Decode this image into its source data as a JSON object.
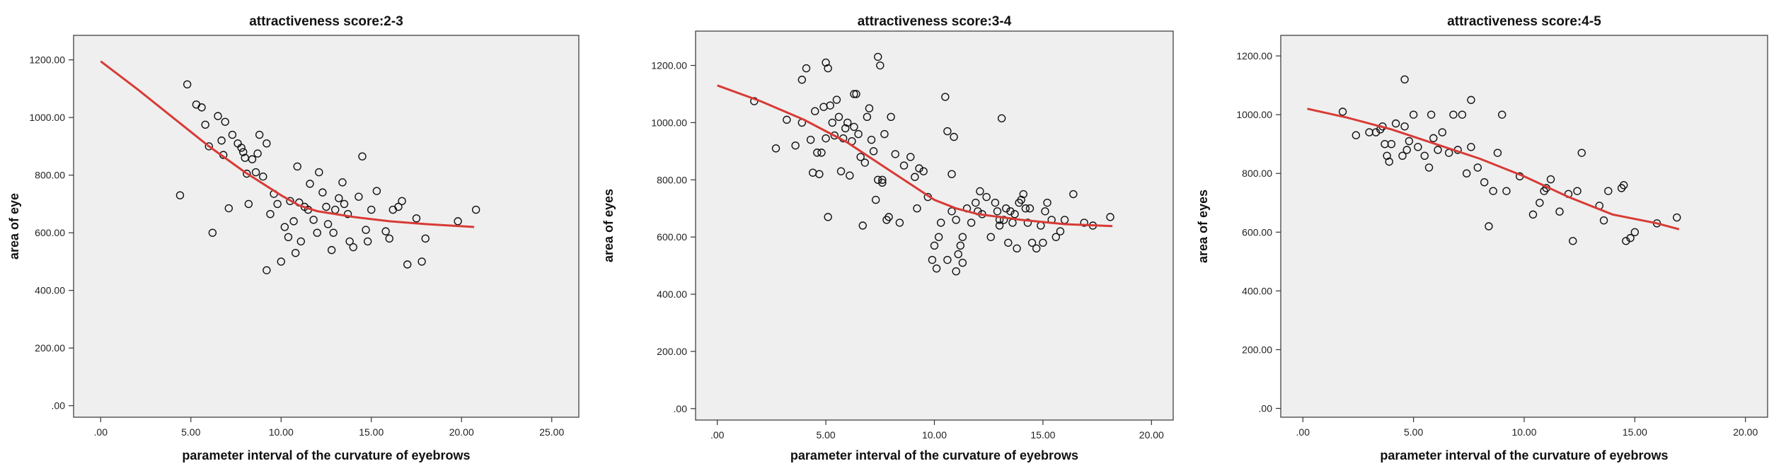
{
  "chart_data": [
    {
      "type": "scatter",
      "title": "attractiveness score:2-3",
      "xlabel": "parameter interval of the curvature of eyebrows",
      "ylabel": "area of eye",
      "xlim": [
        -1.5,
        26.5
      ],
      "ylim": [
        -40,
        1285
      ],
      "x_ticks": [
        ".00",
        "5.00",
        "10.00",
        "15.00",
        "20.00",
        "25.00"
      ],
      "x_tick_values": [
        0,
        5,
        10,
        15,
        20,
        25
      ],
      "y_ticks": [
        ".00",
        "200.00",
        "400.00",
        "600.00",
        "800.00",
        "1000.00",
        "1200.00"
      ],
      "y_tick_values": [
        0,
        200,
        400,
        600,
        800,
        1000,
        1200
      ],
      "fit_line": {
        "x": [
          0,
          2,
          4,
          6,
          8,
          10,
          11,
          12,
          14,
          16,
          18,
          20.7
        ],
        "y": [
          1195,
          1100,
          1000,
          900,
          810,
          730,
          695,
          675,
          655,
          640,
          630,
          620
        ]
      },
      "points": {
        "x": [
          4.4,
          4.8,
          5.3,
          5.6,
          5.8,
          6.0,
          6.2,
          6.5,
          6.8,
          6.9,
          7.1,
          7.3,
          7.6,
          7.8,
          7.9,
          8.0,
          8.1,
          8.2,
          8.4,
          8.6,
          8.7,
          8.8,
          9.0,
          9.2,
          9.4,
          9.6,
          9.8,
          10.0,
          10.2,
          10.4,
          10.5,
          10.7,
          10.8,
          10.9,
          11.0,
          11.1,
          11.3,
          11.5,
          11.6,
          11.8,
          12.0,
          12.1,
          12.3,
          12.5,
          12.6,
          12.8,
          12.9,
          13.0,
          13.2,
          13.4,
          13.5,
          13.7,
          13.8,
          14.0,
          14.3,
          14.5,
          14.7,
          14.8,
          15.0,
          15.3,
          15.8,
          16.0,
          16.2,
          16.5,
          16.7,
          17.0,
          17.5,
          17.8,
          18.0,
          19.8,
          20.8,
          6.7,
          9.2
        ],
        "y": [
          730,
          1115,
          1045,
          1035,
          975,
          900,
          600,
          1005,
          870,
          985,
          685,
          940,
          910,
          895,
          880,
          860,
          805,
          700,
          855,
          810,
          875,
          940,
          795,
          910,
          665,
          735,
          700,
          500,
          620,
          585,
          710,
          640,
          530,
          830,
          705,
          570,
          690,
          680,
          770,
          645,
          600,
          810,
          740,
          690,
          630,
          540,
          600,
          680,
          720,
          775,
          700,
          665,
          570,
          550,
          725,
          865,
          610,
          570,
          680,
          745,
          605,
          580,
          680,
          690,
          710,
          490,
          650,
          500,
          580,
          640,
          680,
          920,
          470
        ]
      }
    },
    {
      "type": "scatter",
      "title": "attractiveness score:3-4",
      "xlabel": "parameter interval of the curvature of eyebrows",
      "ylabel": "area of eyes",
      "xlim": [
        -1.0,
        21.0
      ],
      "ylim": [
        -40,
        1320
      ],
      "x_ticks": [
        ".00",
        "5.00",
        "10.00",
        "15.00",
        "20.00"
      ],
      "x_tick_values": [
        0,
        5,
        10,
        15,
        20
      ],
      "y_ticks": [
        ".00",
        "200.00",
        "400.00",
        "600.00",
        "800.00",
        "1000.00",
        "1200.00"
      ],
      "y_tick_values": [
        0,
        200,
        400,
        600,
        800,
        1000,
        1200
      ],
      "fit_line": {
        "x": [
          0,
          2,
          4,
          6,
          8,
          10,
          11,
          12,
          14,
          16,
          18.2
        ],
        "y": [
          1130,
          1075,
          1010,
          930,
          830,
          730,
          700,
          680,
          660,
          645,
          638
        ]
      },
      "points": {
        "x": [
          1.7,
          2.7,
          3.2,
          3.6,
          3.9,
          4.1,
          4.3,
          4.4,
          4.5,
          4.6,
          4.7,
          4.8,
          4.9,
          5.0,
          5.1,
          5.2,
          5.3,
          5.4,
          5.5,
          5.6,
          5.7,
          5.8,
          5.9,
          6.0,
          6.1,
          6.2,
          6.3,
          6.4,
          6.5,
          6.6,
          6.7,
          6.8,
          6.9,
          7.0,
          7.1,
          7.2,
          7.3,
          7.4,
          7.5,
          7.6,
          7.7,
          7.8,
          7.9,
          8.0,
          8.2,
          8.4,
          8.6,
          8.9,
          9.1,
          9.3,
          9.5,
          9.7,
          9.9,
          10.0,
          10.1,
          10.2,
          10.3,
          10.5,
          10.6,
          10.8,
          10.9,
          11.0,
          11.1,
          11.2,
          11.3,
          11.5,
          11.7,
          11.9,
          12.0,
          12.1,
          12.2,
          12.4,
          12.6,
          12.8,
          12.9,
          13.0,
          13.1,
          13.2,
          13.3,
          13.4,
          13.5,
          13.6,
          13.7,
          13.8,
          13.9,
          14.0,
          14.1,
          14.2,
          14.3,
          14.4,
          14.5,
          14.7,
          14.9,
          15.0,
          15.1,
          15.2,
          15.4,
          15.6,
          15.8,
          16.0,
          16.4,
          16.9,
          17.3,
          18.1,
          3.9,
          5.0,
          5.1,
          6.3,
          7.4,
          7.6,
          10.6,
          10.8,
          11.3,
          13.0,
          11.0,
          9.2
        ],
        "y": [
          1075,
          910,
          1010,
          920,
          1000,
          1190,
          940,
          825,
          1040,
          895,
          820,
          895,
          1055,
          945,
          670,
          1060,
          1000,
          955,
          1080,
          1020,
          830,
          945,
          980,
          1000,
          815,
          935,
          985,
          1100,
          960,
          880,
          640,
          860,
          1020,
          1050,
          940,
          900,
          730,
          800,
          1200,
          790,
          960,
          660,
          670,
          1020,
          890,
          650,
          850,
          880,
          810,
          840,
          830,
          740,
          520,
          570,
          490,
          600,
          650,
          1090,
          520,
          820,
          950,
          660,
          540,
          570,
          510,
          700,
          650,
          720,
          690,
          760,
          680,
          740,
          600,
          720,
          690,
          640,
          1015,
          660,
          700,
          580,
          690,
          650,
          680,
          560,
          720,
          730,
          750,
          700,
          650,
          700,
          580,
          560,
          640,
          580,
          690,
          720,
          660,
          600,
          620,
          660,
          750,
          650,
          640,
          670,
          1150,
          1210,
          1190,
          1100,
          1230,
          800,
          970,
          690,
          600,
          660,
          480,
          700
        ]
      }
    },
    {
      "type": "scatter",
      "title": "attractiveness score:4-5",
      "xlabel": "parameter interval of the curvature of eyebrows",
      "ylabel": "area of eyes",
      "xlim": [
        -1.0,
        21.0
      ],
      "ylim": [
        -30,
        1270
      ],
      "x_ticks": [
        ".00",
        "5.00",
        "10.00",
        "15.00",
        "20.00"
      ],
      "x_tick_values": [
        0,
        5,
        10,
        15,
        20
      ],
      "y_ticks": [
        ".00",
        "200.00",
        "400.00",
        "600.00",
        "800.00",
        "1000.00",
        "1200.00"
      ],
      "y_tick_values": [
        0,
        200,
        400,
        600,
        800,
        1000,
        1200
      ],
      "fit_line": {
        "x": [
          0.2,
          2,
          4,
          6,
          8,
          10,
          12,
          14,
          16,
          17
        ],
        "y": [
          1020,
          990,
          950,
          900,
          850,
          790,
          720,
          660,
          630,
          610
        ]
      },
      "points": {
        "x": [
          1.8,
          2.4,
          3.0,
          3.3,
          3.5,
          3.6,
          3.7,
          3.8,
          3.9,
          4.0,
          4.2,
          4.5,
          4.6,
          4.7,
          4.8,
          5.0,
          5.2,
          5.5,
          5.7,
          5.9,
          6.1,
          6.3,
          6.6,
          6.8,
          7.0,
          7.2,
          7.4,
          7.6,
          7.9,
          8.2,
          8.4,
          8.6,
          8.8,
          9.0,
          9.2,
          9.8,
          10.4,
          10.7,
          10.9,
          11.0,
          11.2,
          11.6,
          12.0,
          12.2,
          12.4,
          12.6,
          13.4,
          13.6,
          13.8,
          14.4,
          14.5,
          14.6,
          14.8,
          15.0,
          16.0,
          16.9,
          4.6,
          5.8,
          7.6
        ],
        "y": [
          1010,
          930,
          940,
          940,
          950,
          960,
          900,
          860,
          840,
          900,
          970,
          860,
          960,
          880,
          910,
          1000,
          890,
          860,
          820,
          920,
          880,
          940,
          870,
          1000,
          880,
          1000,
          800,
          1050,
          820,
          770,
          620,
          740,
          870,
          1000,
          740,
          790,
          660,
          700,
          740,
          750,
          780,
          670,
          730,
          570,
          740,
          870,
          690,
          640,
          740,
          750,
          760,
          570,
          580,
          600,
          630,
          650,
          1120,
          1000,
          890
        ]
      }
    }
  ]
}
